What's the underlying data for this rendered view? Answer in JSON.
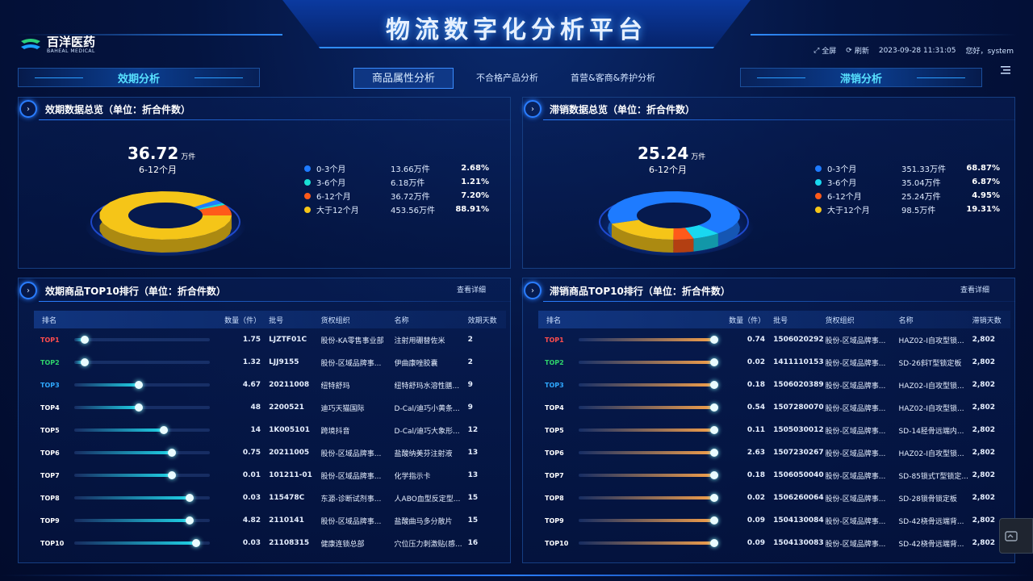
{
  "header": {
    "title": "物流数字化分析平台",
    "logo_cn": "百洋医药",
    "logo_en": "BAHEAL MEDICAL",
    "fullscreen": "全屏",
    "refresh": "刷新",
    "datetime": "2023-09-28 11:31:05",
    "greeting": "您好，system"
  },
  "nav": {
    "left": "效期分析",
    "right": "滞销分析",
    "tabs": [
      "商品属性分析",
      "不合格产品分析",
      "首营&客商&养护分析"
    ]
  },
  "left_summary": {
    "title": "效期数据总览（单位：折合件数）",
    "big_value": "36.72",
    "big_unit": "万件",
    "big_label": "6-12个月",
    "legend": [
      {
        "name": "0-3个月",
        "value": "13.66万件",
        "pct": "2.68%",
        "color": "#1e7bff"
      },
      {
        "name": "3-6个月",
        "value": "6.18万件",
        "pct": "1.21%",
        "color": "#19e0d4"
      },
      {
        "name": "6-12个月",
        "value": "36.72万件",
        "pct": "7.20%",
        "color": "#ff5a1a"
      },
      {
        "name": "大于12个月",
        "value": "453.56万件",
        "pct": "88.91%",
        "color": "#f5c518"
      }
    ]
  },
  "right_summary": {
    "title": "滞销数据总览（单位：折合件数）",
    "big_value": "25.24",
    "big_unit": "万件",
    "big_label": "6-12个月",
    "legend": [
      {
        "name": "0-3个月",
        "value": "351.33万件",
        "pct": "68.87%",
        "color": "#1e7bff"
      },
      {
        "name": "3-6个月",
        "value": "35.04万件",
        "pct": "6.87%",
        "color": "#19d8f0"
      },
      {
        "name": "6-12个月",
        "value": "25.24万件",
        "pct": "4.95%",
        "color": "#ff5a1a"
      },
      {
        "name": "大于12个月",
        "value": "98.5万件",
        "pct": "19.31%",
        "color": "#f5c518"
      }
    ]
  },
  "left_top10": {
    "title": "效期商品TOP10排行（单位：折合件数）",
    "detail": "查看详细",
    "columns": [
      "排名",
      "数量（件）",
      "批号",
      "货权组织",
      "名称",
      "效期天数"
    ],
    "rows": [
      {
        "rank": "TOP1",
        "qty": "1.75",
        "batch": "LJZTF01C",
        "org": "股份-KA零售事业部",
        "name": "注射用硼替佐米",
        "days": "2",
        "level": 0.08
      },
      {
        "rank": "TOP2",
        "qty": "1.32",
        "batch": "LJJ9155",
        "org": "股份-区域品牌事...",
        "name": "伊曲康唑胶囊",
        "days": "2",
        "level": 0.08
      },
      {
        "rank": "TOP3",
        "qty": "4.67",
        "batch": "20211008",
        "org": "纽特舒玛",
        "name": "纽特舒玛水溶性膳...",
        "days": "9",
        "level": 0.48
      },
      {
        "rank": "TOP4",
        "qty": "48",
        "batch": "2200521",
        "org": "迪巧天猫国际",
        "name": "D-Cal/迪巧小黄条...",
        "days": "9",
        "level": 0.48
      },
      {
        "rank": "TOP5",
        "qty": "14",
        "batch": "1K005101",
        "org": "跨境抖音",
        "name": "D-Cal/迪巧大象形...",
        "days": "12",
        "level": 0.66
      },
      {
        "rank": "TOP6",
        "qty": "0.75",
        "batch": "20211005",
        "org": "股份-区域品牌事...",
        "name": "盐酸纳美芬注射液",
        "days": "13",
        "level": 0.72
      },
      {
        "rank": "TOP7",
        "qty": "0.01",
        "batch": "101211-01",
        "org": "股份-区域品牌事...",
        "name": "化学指示卡",
        "days": "13",
        "level": 0.72
      },
      {
        "rank": "TOP8",
        "qty": "0.03",
        "batch": "115478C",
        "org": "东源-诊断试剂事...",
        "name": "人ABO血型反定型...",
        "days": "15",
        "level": 0.85
      },
      {
        "rank": "TOP9",
        "qty": "4.82",
        "batch": "2110141",
        "org": "股份-区域品牌事...",
        "name": "盐酸曲马多分散片",
        "days": "15",
        "level": 0.85
      },
      {
        "rank": "TOP10",
        "qty": "0.03",
        "batch": "21108315",
        "org": "健康连锁总部",
        "name": "穴位压力刺激贴(感...",
        "days": "16",
        "level": 0.9
      }
    ]
  },
  "right_top10": {
    "title": "滞销商品TOP10排行（单位：折合件数）",
    "detail": "查看详细",
    "columns": [
      "排名",
      "数量（件）",
      "批号",
      "货权组织",
      "名称",
      "滞销天数"
    ],
    "rows": [
      {
        "rank": "TOP1",
        "qty": "0.74",
        "batch": "1506020292",
        "org": "股份-区域品牌事...",
        "name": "HAZ02-I自攻型锁...",
        "days": "2,802",
        "level": 1
      },
      {
        "rank": "TOP2",
        "qty": "0.02",
        "batch": "1411110153",
        "org": "股份-区域品牌事...",
        "name": "SD-26斜T型锁定板",
        "days": "2,802",
        "level": 1
      },
      {
        "rank": "TOP3",
        "qty": "0.18",
        "batch": "1506020389",
        "org": "股份-区域品牌事...",
        "name": "HAZ02-I自攻型锁...",
        "days": "2,802",
        "level": 1
      },
      {
        "rank": "TOP4",
        "qty": "0.54",
        "batch": "1507280070",
        "org": "股份-区域品牌事...",
        "name": "HAZ02-I自攻型锁...",
        "days": "2,802",
        "level": 1
      },
      {
        "rank": "TOP5",
        "qty": "0.11",
        "batch": "1505030012",
        "org": "股份-区域品牌事...",
        "name": "SD-14胫骨远端内...",
        "days": "2,802",
        "level": 1
      },
      {
        "rank": "TOP6",
        "qty": "2.63",
        "batch": "1507230267",
        "org": "股份-区域品牌事...",
        "name": "HAZ02-I自攻型锁...",
        "days": "2,802",
        "level": 1
      },
      {
        "rank": "TOP7",
        "qty": "0.18",
        "batch": "1506050040",
        "org": "股份-区域品牌事...",
        "name": "SD-85锁式T型锁定...",
        "days": "2,802",
        "level": 1
      },
      {
        "rank": "TOP8",
        "qty": "0.02",
        "batch": "1506260064",
        "org": "股份-区域品牌事...",
        "name": "SD-28锁骨锁定板",
        "days": "2,802",
        "level": 1
      },
      {
        "rank": "TOP9",
        "qty": "0.09",
        "batch": "1504130084",
        "org": "股份-区域品牌事...",
        "name": "SD-42桡骨远端背...",
        "days": "2,802",
        "level": 1
      },
      {
        "rank": "TOP10",
        "qty": "0.09",
        "batch": "1504130083",
        "org": "股份-区域品牌事...",
        "name": "SD-42桡骨远端背...",
        "days": "2,802",
        "level": 1
      }
    ]
  },
  "colors": {
    "top1": "#ff4d4d",
    "top2": "#2fd36b",
    "top3": "#2fa8ff",
    "rank_default": "#ffffff",
    "bar_cyan": "#1fd2e6",
    "bar_orange": "#f5a04a"
  }
}
